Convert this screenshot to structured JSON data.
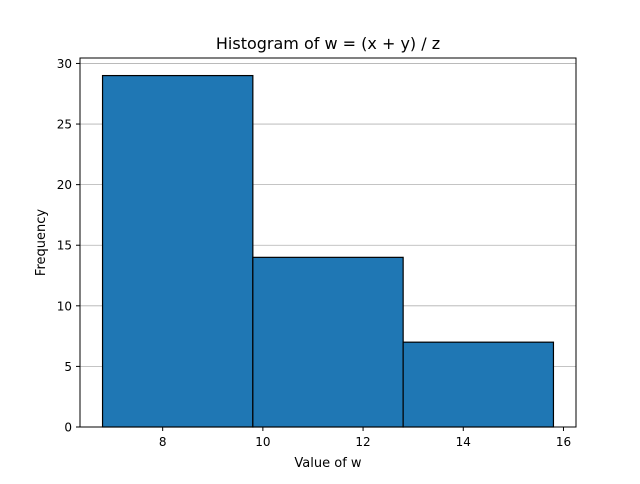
{
  "chart_data": {
    "type": "bar",
    "subtype": "histogram",
    "title": "Histogram of w = (x + y) / z",
    "xlabel": "Value of w",
    "ylabel": "Frequency",
    "bins": [
      {
        "start": 6.8,
        "end": 9.8,
        "count": 29
      },
      {
        "start": 9.8,
        "end": 12.8,
        "count": 14
      },
      {
        "start": 12.8,
        "end": 15.8,
        "count": 7
      }
    ],
    "xlim": [
      6.35,
      16.25
    ],
    "ylim": [
      0,
      30.45
    ],
    "xticks": [
      8,
      10,
      12,
      14,
      16
    ],
    "yticks": [
      0,
      5,
      10,
      15,
      20,
      25,
      30
    ],
    "grid": {
      "axis": "y",
      "on": true
    },
    "colors": {
      "bar_fill": "#1f77b4",
      "bar_edge": "#000000",
      "grid": "#b0b0b0"
    }
  }
}
